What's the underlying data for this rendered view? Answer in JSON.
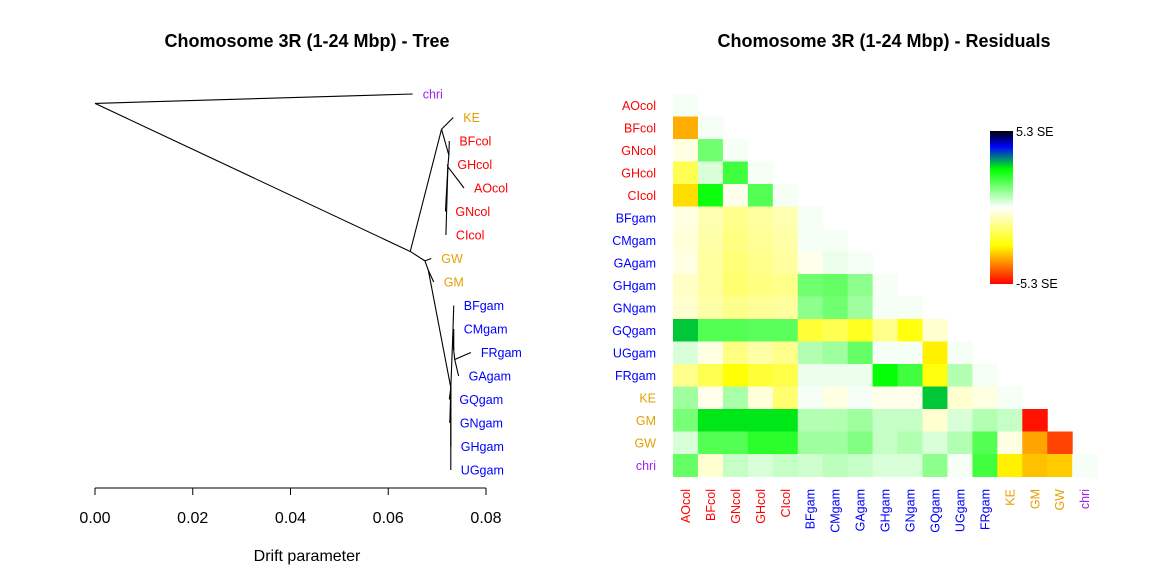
{
  "colors": {
    "col": "#ff0000",
    "gam": "#0000ff",
    "hybrid": "#e69f00",
    "outgroup": "#a020f0"
  },
  "chart_data": [
    {
      "type": "tree",
      "title": "Chomosome 3R (1-24 Mbp) - Tree",
      "xlabel": "Drift parameter",
      "xlim": [
        0,
        0.08
      ],
      "xticks": [
        "0.00",
        "0.02",
        "0.04",
        "0.06",
        "0.08"
      ],
      "tick_values": [
        0,
        0.02,
        0.04,
        0.06,
        0.08
      ],
      "leaves": [
        {
          "name": "chri",
          "group": "outgroup",
          "drift": 0.065,
          "row": 0.0
        },
        {
          "name": "KE",
          "group": "hybrid",
          "drift": 0.0733,
          "row": 1.0
        },
        {
          "name": "BFcol",
          "group": "col",
          "drift": 0.0725,
          "row": 2.0
        },
        {
          "name": "GHcol",
          "group": "col",
          "drift": 0.0721,
          "row": 3.0
        },
        {
          "name": "AOcol",
          "group": "col",
          "drift": 0.0755,
          "row": 4.0
        },
        {
          "name": "GNcol",
          "group": "col",
          "drift": 0.0717,
          "row": 5.0
        },
        {
          "name": "CIcol",
          "group": "col",
          "drift": 0.0718,
          "row": 6.0
        },
        {
          "name": "GW",
          "group": "hybrid",
          "drift": 0.0688,
          "row": 7.0
        },
        {
          "name": "GM",
          "group": "hybrid",
          "drift": 0.0693,
          "row": 8.0
        },
        {
          "name": "BFgam",
          "group": "gam",
          "drift": 0.0734,
          "row": 9.0
        },
        {
          "name": "CMgam",
          "group": "gam",
          "drift": 0.0734,
          "row": 10.0
        },
        {
          "name": "FRgam",
          "group": "gam",
          "drift": 0.0769,
          "row": 11.0
        },
        {
          "name": "GAgam",
          "group": "gam",
          "drift": 0.0744,
          "row": 12.0
        },
        {
          "name": "GQgam",
          "group": "gam",
          "drift": 0.0725,
          "row": 13.0
        },
        {
          "name": "GNgam",
          "group": "gam",
          "drift": 0.0726,
          "row": 14.0
        },
        {
          "name": "GHgam",
          "group": "gam",
          "drift": 0.0728,
          "row": 15.0
        },
        {
          "name": "UGgam",
          "group": "gam",
          "drift": 0.0728,
          "row": 16.0
        }
      ],
      "internal_nodes": [
        {
          "id": "n_root",
          "drift": 0.0,
          "row": 0.4
        },
        {
          "id": "n_main",
          "drift": 0.0645,
          "row": 6.7
        },
        {
          "id": "n_col",
          "drift": 0.0709,
          "row": 1.5
        },
        {
          "id": "n_col2",
          "drift": 0.0724,
          "row": 2.6
        },
        {
          "id": "n_col3",
          "drift": 0.0722,
          "row": 3.1
        },
        {
          "id": "n_hyb",
          "drift": 0.0675,
          "row": 7.1
        },
        {
          "id": "n_gm",
          "drift": 0.0682,
          "row": 7.5
        },
        {
          "id": "n_gam",
          "drift": 0.0728,
          "row": 12.5
        },
        {
          "id": "n_gam2",
          "drift": 0.0732,
          "row": 10.3
        },
        {
          "id": "n_gam3",
          "drift": 0.0734,
          "row": 10.9
        },
        {
          "id": "n_gam4",
          "drift": 0.0736,
          "row": 11.3
        }
      ],
      "edges": [
        [
          "n_root",
          "chri"
        ],
        [
          "n_root",
          "n_main"
        ],
        [
          "n_main",
          "n_col"
        ],
        [
          "n_main",
          "n_hyb"
        ],
        [
          "n_col",
          "KE"
        ],
        [
          "n_col",
          "n_col2"
        ],
        [
          "n_col2",
          "BFcol"
        ],
        [
          "n_col2",
          "n_col3"
        ],
        [
          "n_col3",
          "GHcol"
        ],
        [
          "n_col3",
          "AOcol"
        ],
        [
          "n_col3",
          "GNcol"
        ],
        [
          "n_col3",
          "CIcol"
        ],
        [
          "n_hyb",
          "GW"
        ],
        [
          "n_hyb",
          "n_gm"
        ],
        [
          "n_gm",
          "GM"
        ],
        [
          "n_gm",
          "n_gam"
        ],
        [
          "n_gam",
          "n_gam2"
        ],
        [
          "n_gam",
          "GQgam"
        ],
        [
          "n_gam",
          "GNgam"
        ],
        [
          "n_gam",
          "GHgam"
        ],
        [
          "n_gam",
          "UGgam"
        ],
        [
          "n_gam2",
          "BFgam"
        ],
        [
          "n_gam2",
          "n_gam3"
        ],
        [
          "n_gam3",
          "CMgam"
        ],
        [
          "n_gam3",
          "n_gam4"
        ],
        [
          "n_gam4",
          "FRgam"
        ],
        [
          "n_gam4",
          "GAgam"
        ]
      ]
    },
    {
      "type": "heatmap",
      "title": "Chomosome 3R (1-24 Mbp) - Residuals",
      "labels": [
        "AOcol",
        "BFcol",
        "GNcol",
        "GHcol",
        "CIcol",
        "BFgam",
        "CMgam",
        "GAgam",
        "GHgam",
        "GNgam",
        "GQgam",
        "UGgam",
        "FRgam",
        "KE",
        "GM",
        "GW",
        "chri"
      ],
      "groups": [
        "col",
        "col",
        "col",
        "col",
        "col",
        "gam",
        "gam",
        "gam",
        "gam",
        "gam",
        "gam",
        "gam",
        "gam",
        "hybrid",
        "hybrid",
        "hybrid",
        "outgroup"
      ],
      "colorbar": {
        "max_label": "5.3 SE",
        "min_label": "-5.3 SE",
        "range": [
          -5.3,
          5.3
        ]
      },
      "values": [
        [
          0.1
        ],
        [
          -3.5,
          0.1
        ],
        [
          -0.3,
          1.5,
          0.1
        ],
        [
          -1.8,
          0.4,
          2.0,
          0.1
        ],
        [
          -3.0,
          2.5,
          -0.2,
          1.8,
          0.1
        ],
        [
          -0.3,
          -0.8,
          -1.2,
          -1.0,
          -0.8,
          0.1
        ],
        [
          -0.4,
          -0.9,
          -1.3,
          -1.1,
          -0.9,
          0.1,
          0.1
        ],
        [
          -0.3,
          -1.0,
          -1.4,
          -1.2,
          -1.0,
          -0.2,
          0.2,
          0.1
        ],
        [
          -0.6,
          -1.0,
          -1.5,
          -1.3,
          -1.2,
          1.5,
          1.6,
          1.2,
          0.1
        ],
        [
          -0.5,
          -0.9,
          -1.2,
          -1.1,
          -1.0,
          1.2,
          1.5,
          1.0,
          0.1,
          0.1
        ],
        [
          3.0,
          1.8,
          1.8,
          1.7,
          1.7,
          -2.1,
          -1.8,
          -2.3,
          -1.2,
          -2.5,
          -0.5
        ],
        [
          0.4,
          -0.3,
          -1.3,
          -0.9,
          -1.2,
          0.8,
          1.0,
          1.6,
          0.1,
          0.1,
          -2.8,
          0.1
        ],
        [
          -1.2,
          -1.8,
          -2.6,
          -2.1,
          -1.9,
          0.2,
          0.2,
          0.2,
          2.6,
          2.0,
          -2.5,
          0.8,
          0.1
        ],
        [
          1.0,
          -0.2,
          0.9,
          -0.4,
          -1.5,
          0.1,
          -0.3,
          0.1,
          -0.2,
          -0.2,
          3.0,
          -0.5,
          -0.3,
          0.1
        ],
        [
          1.4,
          2.8,
          2.8,
          2.8,
          2.8,
          0.8,
          0.8,
          1.0,
          0.6,
          0.6,
          -0.5,
          0.4,
          0.8,
          0.6,
          -5.1
        ],
        [
          0.4,
          1.8,
          1.8,
          2.2,
          2.2,
          1.0,
          1.0,
          1.3,
          0.6,
          0.8,
          0.4,
          0.8,
          1.8,
          -0.3,
          -3.6,
          -4.6
        ],
        [
          1.6,
          -0.5,
          0.6,
          0.4,
          0.6,
          0.5,
          0.7,
          0.6,
          0.4,
          0.4,
          1.2,
          0.1,
          2.0,
          -2.8,
          -3.3,
          -3.2,
          0.1
        ]
      ]
    }
  ]
}
